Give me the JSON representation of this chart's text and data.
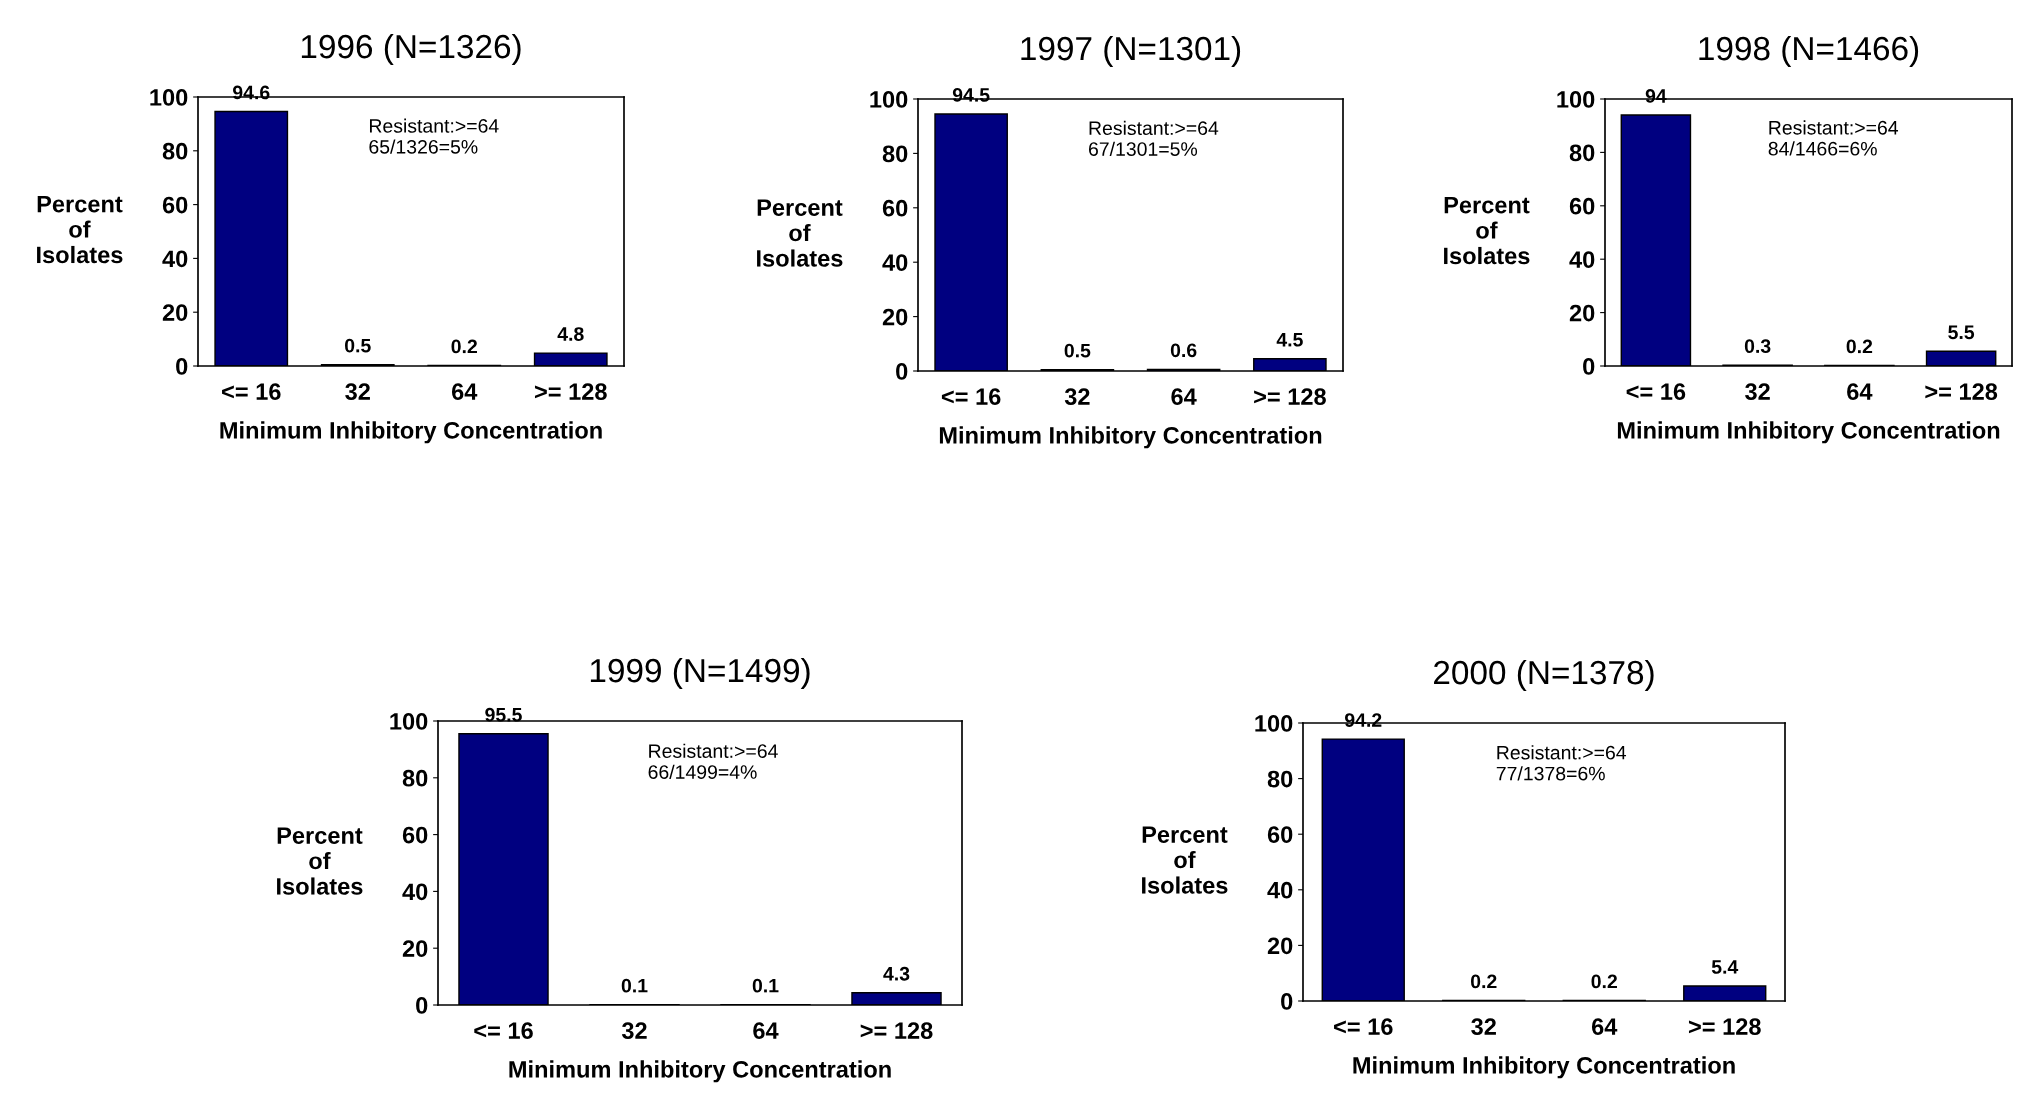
{
  "chart_data": [
    {
      "type": "bar",
      "title": "1996 (N=1326)",
      "xlabel": "Minimum Inhibitory Concentration",
      "ylabel": "Percent\nof\nIsolates",
      "categories": [
        "<= 16",
        "32",
        "64",
        ">= 128"
      ],
      "values": [
        94.6,
        0.5,
        0.2,
        4.8
      ],
      "color": "#000080",
      "ylim": [
        0,
        100
      ],
      "yticks": [
        0,
        20,
        40,
        60,
        80,
        100
      ],
      "data_labels": true,
      "annotations": [
        "Resistant:>=64\n65/1326=5%"
      ]
    },
    {
      "type": "bar",
      "title": "1997 (N=1301)",
      "xlabel": "Minimum Inhibitory Concentration",
      "ylabel": "Percent\nof\nIsolates",
      "categories": [
        "<= 16",
        "32",
        "64",
        ">= 128"
      ],
      "values": [
        94.5,
        0.5,
        0.6,
        4.5
      ],
      "color": "#000080",
      "ylim": [
        0,
        100
      ],
      "yticks": [
        0,
        20,
        40,
        60,
        80,
        100
      ],
      "data_labels": true,
      "annotations": [
        "Resistant:>=64\n67/1301=5%"
      ]
    },
    {
      "type": "bar",
      "title": "1998 (N=1466)",
      "xlabel": "Minimum Inhibitory Concentration",
      "ylabel": "Percent\nof\nIsolates",
      "categories": [
        "<= 16",
        "32",
        "64",
        ">= 128"
      ],
      "values": [
        94,
        0.3,
        0.2,
        5.5
      ],
      "color": "#000080",
      "ylim": [
        0,
        100
      ],
      "yticks": [
        0,
        20,
        40,
        60,
        80,
        100
      ],
      "data_labels": true,
      "annotations": [
        "Resistant:>=64\n84/1466=6%"
      ]
    },
    {
      "type": "bar",
      "title": "1999 (N=1499)",
      "xlabel": "Minimum Inhibitory Concentration",
      "ylabel": "Percent\nof\nIsolates",
      "categories": [
        "<= 16",
        "32",
        "64",
        ">= 128"
      ],
      "values": [
        95.5,
        0.1,
        0.1,
        4.3
      ],
      "color": "#000080",
      "ylim": [
        0,
        100
      ],
      "yticks": [
        0,
        20,
        40,
        60,
        80,
        100
      ],
      "data_labels": true,
      "annotations": [
        "Resistant:>=64\n66/1499=4%"
      ]
    },
    {
      "type": "bar",
      "title": "2000 (N=1378)",
      "xlabel": "Minimum Inhibitory Concentration",
      "ylabel": "Percent\nof\nIsolates",
      "categories": [
        "<= 16",
        "32",
        "64",
        ">= 128"
      ],
      "values": [
        94.2,
        0.2,
        0.2,
        5.4
      ],
      "color": "#000080",
      "ylim": [
        0,
        100
      ],
      "yticks": [
        0,
        20,
        40,
        60,
        80,
        100
      ],
      "data_labels": true,
      "annotations": [
        "Resistant:>=64\n77/1378=6%"
      ]
    }
  ]
}
